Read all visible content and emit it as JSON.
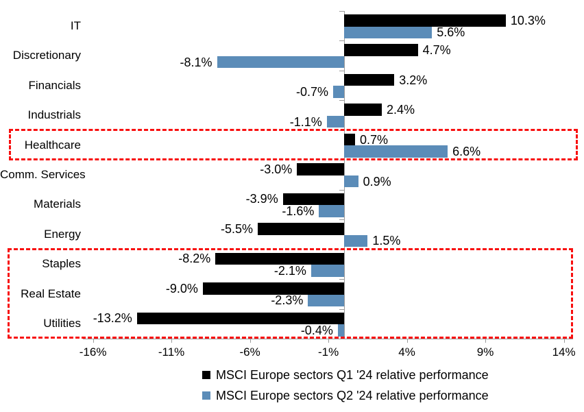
{
  "chart_data": {
    "type": "bar",
    "orientation": "horizontal",
    "title": "",
    "categories": [
      "IT",
      "Discretionary",
      "Financials",
      "Industrials",
      "Healthcare",
      "Comm. Services",
      "Materials",
      "Energy",
      "Staples",
      "Real Estate",
      "Utilities"
    ],
    "series": [
      {
        "name": "MSCI Europe sectors Q1 '24 relative performance",
        "color": "#000000",
        "values": [
          10.3,
          4.7,
          3.2,
          2.4,
          0.7,
          -3.0,
          -3.9,
          -5.5,
          -8.2,
          -9.0,
          -13.2
        ],
        "labels": [
          "10.3%",
          "4.7%",
          "3.2%",
          "2.4%",
          "0.7%",
          "-3.0%",
          "-3.9%",
          "-5.5%",
          "-8.2%",
          "-9.0%",
          "-13.2%"
        ]
      },
      {
        "name": "MSCI Europe sectors Q2 '24 relative performance",
        "color": "#5b8cb8",
        "values": [
          5.6,
          -8.1,
          -0.7,
          -1.1,
          6.6,
          0.9,
          -1.6,
          1.5,
          -2.1,
          -2.3,
          -0.4
        ],
        "labels": [
          "5.6%",
          "-8.1%",
          "-0.7%",
          "-1.1%",
          "6.6%",
          "0.9%",
          "-1.6%",
          "1.5%",
          "-2.1%",
          "-2.3%",
          "-0.4%"
        ]
      }
    ],
    "x_axis": {
      "tick_labels": [
        "-16%",
        "-11%",
        "-6%",
        "-1%",
        "4%",
        "9%",
        "14%"
      ],
      "tick_values": [
        -16,
        -11,
        -6,
        -1,
        4,
        9,
        14
      ],
      "min": -16.6,
      "max": 14.6
    },
    "grid": "off",
    "legend_position": "bottom-center",
    "annotations": [
      {
        "type": "dashed-box",
        "color": "#f80f0f",
        "row_start": 4,
        "row_end": 4,
        "highlights": "Healthcare"
      },
      {
        "type": "dashed-box",
        "color": "#f80f0f",
        "row_start": 8,
        "row_end": 10,
        "highlights": "Staples, Real Estate, Utilities"
      }
    ]
  },
  "colors": {
    "q1_series": "#000000",
    "q2_series": "#5b8cb8",
    "annotation_red": "#f80f0f",
    "axis_gray": "#9a9a9a",
    "background": "#ffffff"
  }
}
